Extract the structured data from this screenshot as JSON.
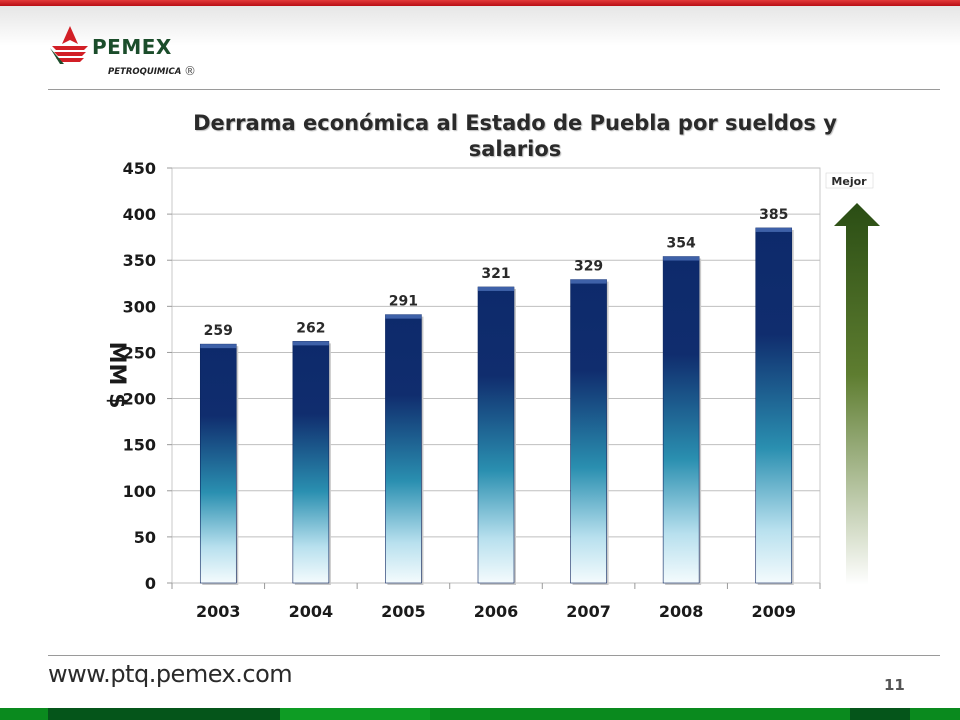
{
  "header": {
    "logo_text": "PEMEX",
    "logo_subtext": "PETROQUIMICA",
    "logo_mark": "®"
  },
  "footer": {
    "url": "www.ptq.pemex.com",
    "page_number": "11"
  },
  "colors": {
    "top_bar": "#c8141a",
    "bottom_bar": "#0a8a1e",
    "bar_top": "#0d2a6b",
    "bar_mid": "#2a8fb0",
    "bar_bottom": "#f4fbfd",
    "arrow_top": "#2a4d14",
    "arrow_bottom": "#ffffff"
  },
  "chart_data": {
    "type": "bar",
    "title": "Derrama económica al Estado de Puebla por sueldos y salarios",
    "ylabel": "MM $",
    "xlabel": "",
    "categories": [
      "2003",
      "2004",
      "2005",
      "2006",
      "2007",
      "2008",
      "2009"
    ],
    "values": [
      259,
      262,
      291,
      321,
      329,
      354,
      385
    ],
    "data_labels": [
      "259",
      "262",
      "291",
      "321",
      "329",
      "354",
      "385"
    ],
    "yticks": [
      0,
      50,
      100,
      150,
      200,
      250,
      300,
      350,
      400,
      450
    ],
    "ylim": [
      0,
      450
    ],
    "grid": true,
    "legend": "none",
    "annotation": {
      "text": "Mejor",
      "icon": "up-arrow-icon"
    }
  }
}
